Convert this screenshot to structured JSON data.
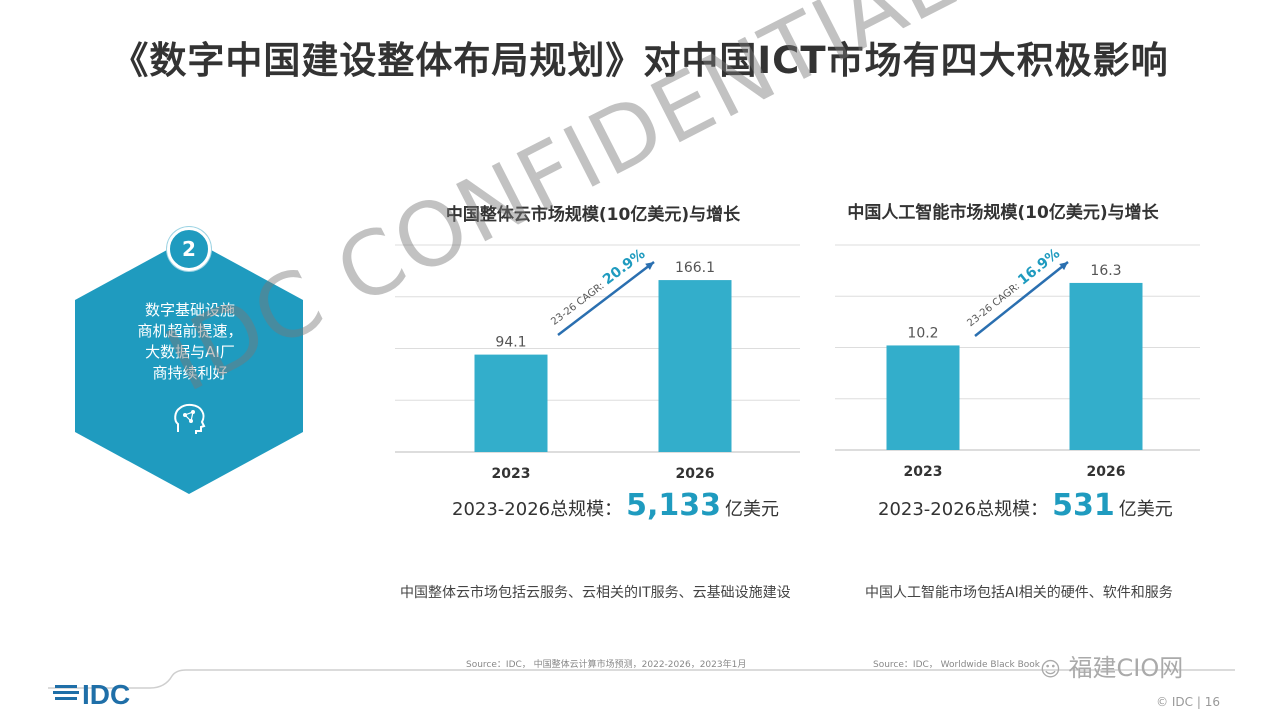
{
  "title": "《数字中国建设整体布局规划》对中国ICT市场有四大积极影响",
  "badge": "2",
  "hex_lines": [
    "数字基础设施",
    "商机超前提速，",
    "大数据与AI厂",
    "商持续利好"
  ],
  "chart_data": [
    {
      "type": "bar",
      "title": "中国整体云市场规模(10亿美元)与增长",
      "categories": [
        "2023",
        "2026"
      ],
      "values": [
        94.1,
        166.1
      ],
      "value_labels": [
        "94.1",
        "166.1"
      ],
      "cagr_prefix": "23-26 CAGR: ",
      "cagr_value": "20.9%",
      "ylim": [
        0,
        200
      ],
      "grid": true,
      "color": "#33aecb"
    },
    {
      "type": "bar",
      "title": "中国人工智能市场规模(10亿美元)与增长",
      "categories": [
        "2023",
        "2026"
      ],
      "values": [
        10.2,
        16.3
      ],
      "value_labels": [
        "10.2",
        "16.3"
      ],
      "cagr_prefix": "23-26 CAGR: ",
      "cagr_value": "16.9%",
      "ylim": [
        0,
        20
      ],
      "grid": true,
      "color": "#33aecb"
    }
  ],
  "totals": [
    {
      "label": "2023-2026总规模：",
      "value": "5,133",
      "unit": "亿美元"
    },
    {
      "label": "2023-2026总规模：",
      "value": "531",
      "unit": "亿美元"
    }
  ],
  "notes": [
    "中国整体云市场包括云服务、云相关的IT服务、云基础设施建设",
    "中国人工智能市场包括AI相关的硬件、软件和服务"
  ],
  "sources": [
    "Source：IDC，  中国整体云计算市场预测，2022-2026，2023年1月",
    "Source：IDC，  Worldwide Black Book"
  ],
  "watermark": "IDC CONFIDENTIAL",
  "footer": {
    "logo": "IDC",
    "page": "© IDC |  16",
    "wechat": "福建CIO网"
  },
  "colors": {
    "accent": "#1f9bbf",
    "bar": "#33aecb"
  }
}
